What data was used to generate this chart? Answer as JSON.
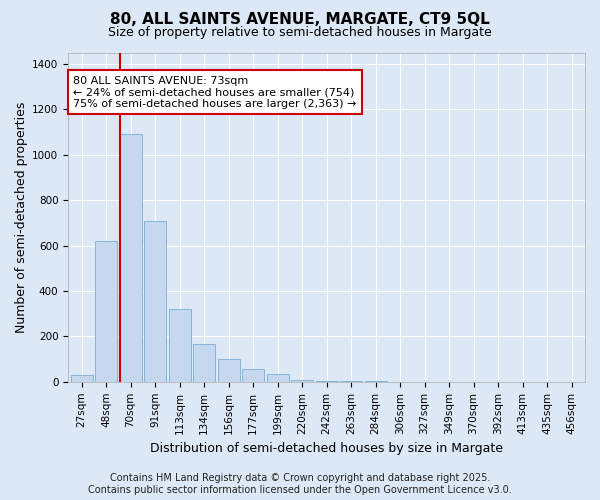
{
  "title1": "80, ALL SAINTS AVENUE, MARGATE, CT9 5QL",
  "title2": "Size of property relative to semi-detached houses in Margate",
  "xlabel": "Distribution of semi-detached houses by size in Margate",
  "ylabel": "Number of semi-detached properties",
  "bin_labels": [
    "27sqm",
    "48sqm",
    "70sqm",
    "91sqm",
    "113sqm",
    "134sqm",
    "156sqm",
    "177sqm",
    "199sqm",
    "220sqm",
    "242sqm",
    "263sqm",
    "284sqm",
    "306sqm",
    "327sqm",
    "349sqm",
    "370sqm",
    "392sqm",
    "413sqm",
    "435sqm",
    "456sqm"
  ],
  "bar_heights": [
    30,
    620,
    1090,
    710,
    320,
    165,
    100,
    55,
    35,
    10,
    5,
    3,
    2,
    1,
    1,
    0,
    0,
    0,
    0,
    0,
    0
  ],
  "bar_color": "#c5d8f0",
  "bar_edge_color": "#7bafd4",
  "highlight_bin_index": 2,
  "highlight_line_color": "#cc0000",
  "annotation_line1": "80 ALL SAINTS AVENUE: 73sqm",
  "annotation_line2": "← 24% of semi-detached houses are smaller (754)",
  "annotation_line3": "75% of semi-detached houses are larger (2,363) →",
  "annotation_box_color": "#ffffff",
  "annotation_box_edge_color": "#cc0000",
  "ylim": [
    0,
    1450
  ],
  "yticks": [
    0,
    200,
    400,
    600,
    800,
    1000,
    1200,
    1400
  ],
  "background_color": "#dce8f5",
  "plot_bg_color": "#dce8f5",
  "grid_color": "#ffffff",
  "footer_line1": "Contains HM Land Registry data © Crown copyright and database right 2025.",
  "footer_line2": "Contains public sector information licensed under the Open Government Licence v3.0.",
  "title_fontsize": 11,
  "subtitle_fontsize": 9,
  "axis_label_fontsize": 9,
  "tick_fontsize": 7.5,
  "annotation_fontsize": 8,
  "footer_fontsize": 7
}
